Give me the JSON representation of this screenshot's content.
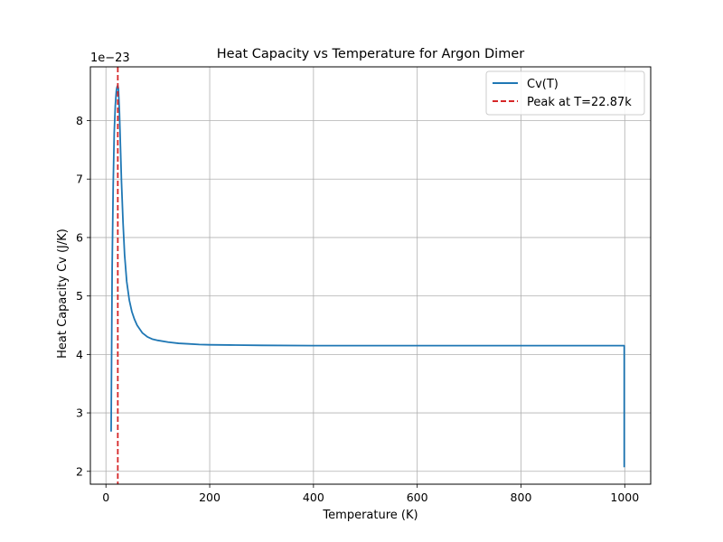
{
  "chart_data": {
    "type": "line",
    "title": "Heat Capacity vs Temperature for Argon Dimer",
    "xlabel": "Temperature (K)",
    "ylabel": "Heat Capacity Cv (J/K)",
    "y_offset_label": "1e−23",
    "xlim": [
      -30,
      1050
    ],
    "ylim": [
      1.78,
      8.92
    ],
    "x_ticks": [
      0,
      200,
      400,
      600,
      800,
      1000
    ],
    "y_ticks": [
      2,
      3,
      4,
      5,
      6,
      7,
      8
    ],
    "grid": true,
    "legend_position": "top-right",
    "series": [
      {
        "name": "Cv(T)",
        "color": "#1f77b4",
        "style": "solid",
        "x": [
          10,
          12,
          14,
          16,
          18,
          20,
          21,
          22,
          22.87,
          24,
          26,
          28,
          30,
          33,
          36,
          40,
          45,
          50,
          55,
          60,
          70,
          80,
          90,
          100,
          120,
          140,
          160,
          180,
          200,
          250,
          300,
          400,
          500,
          600,
          700,
          800,
          900,
          999,
          999
        ],
        "y": [
          2.68,
          5.5,
          6.9,
          7.8,
          8.25,
          8.5,
          8.56,
          8.59,
          8.6,
          8.55,
          8.15,
          7.55,
          6.95,
          6.25,
          5.7,
          5.25,
          4.93,
          4.73,
          4.6,
          4.5,
          4.37,
          4.3,
          4.26,
          4.24,
          4.21,
          4.19,
          4.18,
          4.17,
          4.165,
          4.16,
          4.155,
          4.15,
          4.15,
          4.15,
          4.15,
          4.15,
          4.15,
          4.15,
          2.07
        ]
      },
      {
        "name": "Peak at T=22.87k",
        "color": "#d62728",
        "style": "dashed",
        "vline_x": 22.87
      }
    ]
  }
}
